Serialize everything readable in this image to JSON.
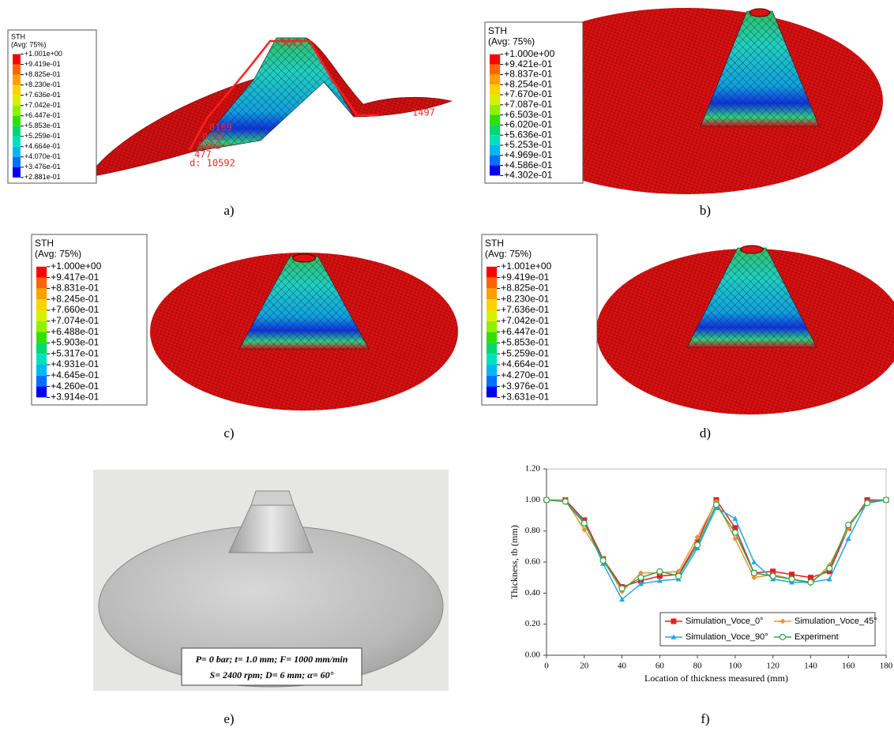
{
  "panels": [
    {
      "label": "a)",
      "legend": {
        "title": "STH",
        "subtitle": "(Avg: 75%)",
        "values": [
          "+1.001e+00",
          "+9.419e-01",
          "+8.825e-01",
          "+8.230e-01",
          "+7.636e-01",
          "+7.042e-01",
          "+6.447e-01",
          "+5.853e-01",
          "+5.259e-01",
          "+4.664e-01",
          "+4.070e-01",
          "+3.476e-01",
          "+2.881e-01"
        ]
      },
      "annotations": [
        "3015",
        "1497",
        "0169",
        "0285",
        "0362",
        "477",
        "d: 10592"
      ]
    },
    {
      "label": "b)",
      "legend": {
        "title": "STH",
        "subtitle": "(Avg: 75%)",
        "values": [
          "+1.000e+00",
          "+9.421e-01",
          "+8.837e-01",
          "+8.254e-01",
          "+7.670e-01",
          "+7.087e-01",
          "+6.503e-01",
          "+6.020e-01",
          "+5.636e-01",
          "+5.253e-01",
          "+4.969e-01",
          "+4.586e-01",
          "+4.302e-01"
        ]
      }
    },
    {
      "label": "c)",
      "legend": {
        "title": "STH",
        "subtitle": "(Avg: 75%)",
        "values": [
          "+1.000e+00",
          "+9.417e-01",
          "+8.831e-01",
          "+8.245e-01",
          "+7.660e-01",
          "+7.074e-01",
          "+6.488e-01",
          "+5.903e-01",
          "+5.317e-01",
          "+4.931e-01",
          "+4.645e-01",
          "+4.260e-01",
          "+3.914e-01"
        ]
      }
    },
    {
      "label": "d)",
      "legend": {
        "title": "STH",
        "subtitle": "(Avg: 75%)",
        "values": [
          "+1.001e+00",
          "+9.419e-01",
          "+8.825e-01",
          "+8.230e-01",
          "+7.636e-01",
          "+7.042e-01",
          "+6.447e-01",
          "+5.853e-01",
          "+5.259e-01",
          "+4.664e-01",
          "+4.270e-01",
          "+3.976e-01",
          "+3.631e-01"
        ]
      }
    }
  ],
  "photo": {
    "label": "e)",
    "text_lines": [
      "P= 0 bar; t= 1.0 mm; F= 1000 mm/min",
      "S= 2400 rpm; D= 6 mm; α= 60°"
    ]
  },
  "chart_label": "f)",
  "chart_data": {
    "type": "line",
    "x_label": "Location of thickness measured (mm)",
    "y_label": "Thickness, tb (mm)",
    "x": [
      0,
      10,
      20,
      30,
      40,
      50,
      60,
      70,
      80,
      90,
      100,
      110,
      120,
      130,
      140,
      150,
      160,
      170,
      180
    ],
    "series": [
      {
        "name": "Simulation_Voce_0°",
        "color": "#e02020",
        "marker": "square",
        "values": [
          1.0,
          1.0,
          0.87,
          0.62,
          0.44,
          0.48,
          0.51,
          0.52,
          0.73,
          1.0,
          0.82,
          0.53,
          0.54,
          0.52,
          0.5,
          0.54,
          0.82,
          1.0,
          1.0
        ]
      },
      {
        "name": "Simulation_Voce_45°",
        "color": "#f0903a",
        "marker": "diamond",
        "values": [
          1.0,
          1.0,
          0.81,
          0.62,
          0.41,
          0.53,
          0.53,
          0.54,
          0.76,
          0.99,
          0.75,
          0.5,
          0.52,
          0.49,
          0.46,
          0.58,
          0.82,
          0.99,
          1.0
        ]
      },
      {
        "name": "Simulation_Voce_90°",
        "color": "#20a8e8",
        "marker": "triangle",
        "values": [
          1.0,
          0.99,
          0.86,
          0.59,
          0.36,
          0.46,
          0.48,
          0.49,
          0.69,
          0.95,
          0.88,
          0.6,
          0.49,
          0.47,
          0.47,
          0.49,
          0.75,
          0.99,
          1.0
        ]
      },
      {
        "name": "Experiment",
        "color": "#2aa84a",
        "marker": "circle-open",
        "values": [
          1.0,
          0.99,
          0.85,
          0.61,
          0.43,
          0.5,
          0.54,
          0.51,
          0.71,
          0.97,
          0.79,
          0.53,
          0.51,
          0.49,
          0.47,
          0.56,
          0.84,
          0.98,
          1.0
        ]
      }
    ],
    "xlim": [
      0,
      180
    ],
    "ylim": [
      0,
      1.2
    ],
    "xticks": [
      0,
      20,
      40,
      60,
      80,
      100,
      120,
      140,
      160,
      180
    ],
    "yticks": [
      {
        "value": 0,
        "label": "0.00"
      },
      {
        "value": 0.2,
        "label": "0.20"
      },
      {
        "value": 0.4,
        "label": "0.40"
      },
      {
        "value": 0.6,
        "label": "0.60"
      },
      {
        "value": 0.8,
        "label": "0.80"
      },
      {
        "value": 1,
        "label": "1.00"
      },
      {
        "value": 1.2,
        "label": "1.20"
      }
    ],
    "grid": false,
    "legend_position": "lower right"
  }
}
